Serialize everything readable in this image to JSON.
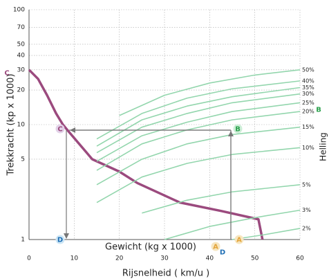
{
  "chart_data": {
    "type": "line",
    "log_y": true,
    "ylabel": "Trekkracht  (kp x 1000)",
    "xlabel": "Rijsnelheid ( km/u )",
    "xlabel_inner": "Gewicht (kg x 1000)",
    "right_label": "Helling",
    "xlim": [
      0,
      60
    ],
    "xticks": [
      0,
      10,
      20,
      30,
      40,
      50,
      60
    ],
    "ylim": [
      1,
      100
    ],
    "yticks": [
      1,
      5,
      10,
      20,
      30,
      40,
      50,
      70,
      100
    ],
    "grid": true,
    "markers": [
      "C",
      "C",
      "B",
      "B",
      "D",
      "D",
      "A",
      "A"
    ],
    "series": [
      {
        "name": "Trekkracht",
        "color": "#9b4a7e",
        "x": [
          0,
          2,
          4,
          6,
          7.5,
          9,
          14,
          20,
          24,
          33.4,
          42.6,
          50.8,
          51.7
        ],
        "values": [
          30,
          25,
          18,
          12.5,
          10,
          8.5,
          5,
          3.9,
          3.1,
          2.1,
          1.77,
          1.5,
          1
        ]
      },
      {
        "name": "50%",
        "color": "#93d6ad",
        "x": [
          20,
          30,
          40,
          50,
          60
        ],
        "values": [
          12,
          18,
          23,
          27,
          30
        ]
      },
      {
        "name": "40%",
        "color": "#93d6ad",
        "x": [
          15,
          25,
          35,
          45,
          60
        ],
        "values": [
          7.5,
          12.5,
          17,
          20.5,
          24
        ]
      },
      {
        "name": "35%",
        "color": "#93d6ad",
        "x": [
          15,
          25,
          35,
          45,
          60
        ],
        "values": [
          6.5,
          11,
          14.5,
          17.5,
          21
        ]
      },
      {
        "name": "30%",
        "color": "#93d6ad",
        "x": [
          15,
          25,
          35,
          45,
          60
        ],
        "values": [
          5.7,
          9.5,
          12.5,
          15.5,
          18.5
        ]
      },
      {
        "name": "25%",
        "color": "#93d6ad",
        "x": [
          15,
          25,
          35,
          45,
          60
        ],
        "values": [
          4.8,
          8,
          10.5,
          13,
          15.5
        ]
      },
      {
        "name": "20%",
        "color": "#93d6ad",
        "x": [
          15,
          25,
          35,
          45,
          60
        ],
        "values": [
          4,
          6.8,
          9,
          11,
          13
        ]
      },
      {
        "name": "15%",
        "color": "#93d6ad",
        "x": [
          15,
          25,
          35,
          45,
          60
        ],
        "values": [
          3,
          5,
          6.8,
          8.2,
          9.5
        ]
      },
      {
        "name": "10%",
        "color": "#93d6ad",
        "x": [
          15,
          25,
          35,
          45,
          60
        ],
        "values": [
          2.1,
          3.5,
          4.6,
          5.5,
          6.3
        ]
      },
      {
        "name": "5%",
        "color": "#93d6ad",
        "x": [
          25,
          35,
          45,
          60
        ],
        "values": [
          1.7,
          2.2,
          2.6,
          3
        ]
      },
      {
        "name": "3%",
        "color": "#93d6ad",
        "x": [
          30,
          40,
          50,
          60
        ],
        "values": [
          1,
          1.3,
          1.55,
          1.8
        ]
      },
      {
        "name": "2%",
        "color": "#93d6ad",
        "x": [
          45,
          52,
          60
        ],
        "values": [
          1,
          1.1,
          1.25
        ]
      }
    ]
  }
}
